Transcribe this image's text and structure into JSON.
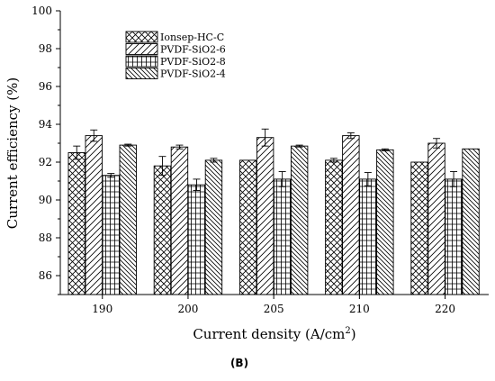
{
  "chart_data": {
    "type": "bar",
    "xlabel": "Current density (A/cm",
    "xlabel_sup": "2",
    "xlabel_end": ")",
    "ylabel": "Current efficiency (%)",
    "categories": [
      "190",
      "200",
      "205",
      "210",
      "220"
    ],
    "ylim": [
      85,
      100
    ],
    "yticks": [
      86,
      88,
      90,
      92,
      94,
      96,
      98,
      100
    ],
    "grid": false,
    "legend_position": "top-left",
    "series": [
      {
        "name": "Ionsep-HC-C",
        "pattern": "crosshatch",
        "values": [
          92.5,
          91.8,
          92.1,
          92.1,
          92.0
        ],
        "errors": [
          0.35,
          0.5,
          0.0,
          0.1,
          0.0
        ]
      },
      {
        "name": "PVDF-SiO2-6",
        "pattern": "forward-diagonal",
        "values": [
          93.4,
          92.8,
          93.3,
          93.4,
          93.0
        ],
        "errors": [
          0.3,
          0.1,
          0.45,
          0.15,
          0.25
        ]
      },
      {
        "name": "PVDF-SiO2-8",
        "pattern": "grid",
        "values": [
          91.3,
          90.8,
          91.1,
          91.1,
          91.1
        ],
        "errors": [
          0.1,
          0.3,
          0.4,
          0.35,
          0.4
        ]
      },
      {
        "name": "PVDF-SiO2-4",
        "pattern": "back-diagonal",
        "values": [
          92.9,
          92.1,
          92.85,
          92.65,
          92.7
        ],
        "errors": [
          0.05,
          0.1,
          0.05,
          0.05,
          0.0
        ]
      }
    ]
  },
  "caption": "(B)"
}
